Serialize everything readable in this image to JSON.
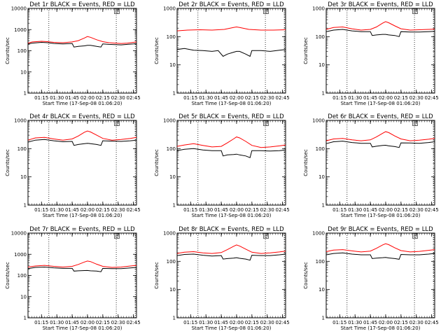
{
  "chart_data": [
    {
      "type": "line",
      "title": "Det 1r BLACK = Events, RED = LLD",
      "xlabel": "Start Time (17-Sep-08 01:06:20)",
      "ylabel": "Counts/sec",
      "yscale": "log",
      "ylim": [
        1,
        10000
      ],
      "xlim": [
        1.03,
        2.8
      ],
      "grid": false,
      "marker_label": "E",
      "x_tick_labels": [
        "01:15",
        "01:30",
        "01:45",
        "02:00",
        "02:15",
        "02:30",
        "02:45"
      ],
      "y_tick_labels": [
        "1",
        "10",
        "100",
        "1000",
        "10000"
      ],
      "vlines": [
        1.37,
        2.47,
        2.78
      ],
      "series": [
        {
          "color": "#ff0000",
          "x": [
            1.03,
            1.1,
            1.25,
            1.35,
            1.45,
            1.6,
            1.75,
            1.85,
            1.95,
            2.0,
            2.05,
            2.15,
            2.25,
            2.35,
            2.45,
            2.55,
            2.65,
            2.75,
            2.8
          ],
          "y": [
            230,
            260,
            280,
            270,
            250,
            240,
            260,
            300,
            400,
            470,
            430,
            330,
            270,
            240,
            230,
            220,
            230,
            250,
            260
          ]
        },
        {
          "color": "#000000",
          "x": [
            1.03,
            1.1,
            1.25,
            1.35,
            1.45,
            1.6,
            1.75,
            1.78,
            1.85,
            1.95,
            2.0,
            2.05,
            2.15,
            2.22,
            2.25,
            2.35,
            2.45,
            2.55,
            2.65,
            2.75,
            2.8
          ],
          "y": [
            210,
            230,
            250,
            240,
            220,
            210,
            220,
            150,
            160,
            170,
            180,
            180,
            160,
            150,
            210,
            200,
            195,
            190,
            200,
            210,
            220
          ]
        }
      ]
    },
    {
      "type": "line",
      "title": "Det 2r BLACK = Events, RED = LLD",
      "xlabel": "Start Time (17-Sep-08 01:06:20)",
      "ylabel": "Counts/sec",
      "yscale": "log",
      "ylim": [
        1,
        1000
      ],
      "xlim": [
        1.03,
        2.8
      ],
      "grid": false,
      "marker_label": "E",
      "x_tick_labels": [
        "01:15",
        "01:30",
        "01:45",
        "02:00",
        "02:15",
        "02:30",
        "02:45"
      ],
      "y_tick_labels": [
        "1",
        "10",
        "100",
        "1000"
      ],
      "vlines": [
        1.37,
        2.47,
        2.78
      ],
      "series": [
        {
          "color": "#ff0000",
          "x": [
            1.03,
            1.2,
            1.4,
            1.6,
            1.8,
            1.95,
            2.0,
            2.05,
            2.2,
            2.4,
            2.6,
            2.8
          ],
          "y": [
            160,
            170,
            175,
            170,
            180,
            210,
            220,
            210,
            180,
            170,
            170,
            175
          ]
        },
        {
          "color": "#000000",
          "x": [
            1.03,
            1.15,
            1.3,
            1.45,
            1.6,
            1.7,
            1.78,
            1.85,
            1.95,
            2.0,
            2.05,
            2.15,
            2.22,
            2.25,
            2.4,
            2.55,
            2.7,
            2.8
          ],
          "y": [
            35,
            38,
            33,
            32,
            30,
            32,
            20,
            24,
            28,
            30,
            30,
            24,
            20,
            32,
            32,
            30,
            33,
            35
          ]
        }
      ]
    },
    {
      "type": "line",
      "title": "Det 3r BLACK = Events, RED = LLD",
      "xlabel": "Start Time (17-Sep-08 01:06:20)",
      "ylabel": "Counts/sec",
      "yscale": "log",
      "ylim": [
        1,
        1000
      ],
      "xlim": [
        1.03,
        2.8
      ],
      "grid": false,
      "marker_label": "E",
      "x_tick_labels": [
        "01:15",
        "01:30",
        "01:45",
        "02:00",
        "02:15",
        "02:30",
        "02:45"
      ],
      "y_tick_labels": [
        "1",
        "10",
        "100",
        "1000"
      ],
      "vlines": [
        1.37,
        2.47,
        2.78
      ],
      "series": [
        {
          "color": "#ff0000",
          "x": [
            1.03,
            1.15,
            1.3,
            1.45,
            1.6,
            1.75,
            1.85,
            1.95,
            2.0,
            2.05,
            2.15,
            2.25,
            2.4,
            2.55,
            2.7,
            2.8
          ],
          "y": [
            180,
            210,
            220,
            190,
            170,
            180,
            220,
            300,
            340,
            310,
            240,
            190,
            170,
            175,
            180,
            185
          ]
        },
        {
          "color": "#000000",
          "x": [
            1.03,
            1.15,
            1.3,
            1.45,
            1.6,
            1.75,
            1.78,
            1.85,
            1.95,
            2.0,
            2.05,
            2.15,
            2.22,
            2.25,
            2.4,
            2.55,
            2.7,
            2.8
          ],
          "y": [
            150,
            170,
            180,
            160,
            150,
            150,
            110,
            115,
            120,
            120,
            115,
            110,
            100,
            150,
            145,
            145,
            150,
            155
          ]
        }
      ]
    },
    {
      "type": "line",
      "title": "Det 4r BLACK = Events, RED = LLD",
      "xlabel": "Start Time (17-Sep-08 01:06:20)",
      "ylabel": "Counts/sec",
      "yscale": "log",
      "ylim": [
        1,
        1000
      ],
      "xlim": [
        1.03,
        2.8
      ],
      "grid": false,
      "marker_label": "E",
      "x_tick_labels": [
        "01:15",
        "01:30",
        "01:45",
        "02:00",
        "02:15",
        "02:30",
        "02:45"
      ],
      "y_tick_labels": [
        "1",
        "10",
        "100",
        "1000"
      ],
      "vlines": [
        1.37,
        2.47,
        2.78
      ],
      "series": [
        {
          "color": "#ff0000",
          "x": [
            1.03,
            1.15,
            1.3,
            1.45,
            1.6,
            1.75,
            1.85,
            1.95,
            2.0,
            2.05,
            2.15,
            2.25,
            2.4,
            2.55,
            2.7,
            2.8
          ],
          "y": [
            200,
            240,
            250,
            220,
            200,
            220,
            280,
            380,
            420,
            390,
            300,
            230,
            200,
            210,
            230,
            250
          ]
        },
        {
          "color": "#000000",
          "x": [
            1.03,
            1.15,
            1.3,
            1.45,
            1.6,
            1.75,
            1.78,
            1.85,
            1.95,
            2.0,
            2.05,
            2.15,
            2.22,
            2.25,
            2.4,
            2.55,
            2.7,
            2.8
          ],
          "y": [
            170,
            200,
            210,
            190,
            175,
            180,
            130,
            140,
            150,
            155,
            150,
            140,
            130,
            190,
            185,
            180,
            190,
            200
          ]
        }
      ]
    },
    {
      "type": "line",
      "title": "Det 5r BLACK = Events, RED = LLD",
      "xlabel": "Start Time (17-Sep-08 01:06:20)",
      "ylabel": "Counts/sec",
      "yscale": "log",
      "ylim": [
        1,
        1000
      ],
      "xlim": [
        1.03,
        2.8
      ],
      "grid": false,
      "marker_label": "E",
      "x_tick_labels": [
        "01:15",
        "01:30",
        "01:45",
        "02:00",
        "02:15",
        "02:30",
        "02:45"
      ],
      "y_tick_labels": [
        "1",
        "10",
        "100",
        "1000"
      ],
      "vlines": [
        1.37,
        2.47,
        2.78
      ],
      "series": [
        {
          "color": "#ff0000",
          "x": [
            1.03,
            1.15,
            1.3,
            1.45,
            1.6,
            1.75,
            1.85,
            1.95,
            2.0,
            2.05,
            2.15,
            2.25,
            2.4,
            2.55,
            2.7,
            2.8
          ],
          "y": [
            120,
            135,
            150,
            130,
            115,
            120,
            160,
            220,
            260,
            240,
            180,
            130,
            110,
            115,
            125,
            135
          ]
        },
        {
          "color": "#000000",
          "x": [
            1.03,
            1.15,
            1.3,
            1.45,
            1.6,
            1.75,
            1.78,
            1.85,
            1.95,
            2.0,
            2.05,
            2.15,
            2.22,
            2.25,
            2.4,
            2.55,
            2.7,
            2.8
          ],
          "y": [
            85,
            95,
            100,
            90,
            85,
            85,
            55,
            60,
            62,
            64,
            60,
            55,
            48,
            85,
            85,
            82,
            85,
            90
          ]
        }
      ]
    },
    {
      "type": "line",
      "title": "Det 6r BLACK = Events, RED = LLD",
      "xlabel": "Start Time (17-Sep-08 01:06:20)",
      "ylabel": "Counts/sec",
      "yscale": "log",
      "ylim": [
        1,
        1000
      ],
      "xlim": [
        1.03,
        2.8
      ],
      "grid": false,
      "marker_label": "E",
      "x_tick_labels": [
        "01:15",
        "01:30",
        "01:45",
        "02:00",
        "02:15",
        "02:30",
        "02:45"
      ],
      "y_tick_labels": [
        "1",
        "10",
        "100",
        "1000"
      ],
      "vlines": [
        1.37,
        2.47,
        2.78
      ],
      "series": [
        {
          "color": "#ff0000",
          "x": [
            1.03,
            1.15,
            1.3,
            1.45,
            1.6,
            1.75,
            1.85,
            1.95,
            2.0,
            2.05,
            2.15,
            2.25,
            2.4,
            2.55,
            2.7,
            2.8
          ],
          "y": [
            190,
            220,
            230,
            205,
            190,
            205,
            260,
            350,
            400,
            370,
            280,
            220,
            190,
            200,
            215,
            230
          ]
        },
        {
          "color": "#000000",
          "x": [
            1.03,
            1.15,
            1.3,
            1.45,
            1.6,
            1.75,
            1.78,
            1.85,
            1.95,
            2.0,
            2.05,
            2.15,
            2.22,
            2.25,
            2.4,
            2.55,
            2.7,
            2.8
          ],
          "y": [
            150,
            175,
            185,
            165,
            155,
            155,
            115,
            122,
            130,
            132,
            125,
            118,
            110,
            160,
            158,
            155,
            165,
            175
          ]
        }
      ]
    },
    {
      "type": "line",
      "title": "Det 7r BLACK = Events, RED = LLD",
      "xlabel": "Start Time (17-Sep-08 01:06:20)",
      "ylabel": "Counts/sec",
      "yscale": "log",
      "ylim": [
        1,
        10000
      ],
      "xlim": [
        1.03,
        2.8
      ],
      "grid": false,
      "marker_label": "E",
      "x_tick_labels": [
        "01:15",
        "01:30",
        "01:45",
        "02:00",
        "02:15",
        "02:30",
        "02:45"
      ],
      "y_tick_labels": [
        "1",
        "10",
        "100",
        "1000",
        "10000"
      ],
      "vlines": [
        1.37,
        2.47,
        2.78
      ],
      "series": [
        {
          "color": "#ff0000",
          "x": [
            1.03,
            1.15,
            1.3,
            1.45,
            1.6,
            1.75,
            1.85,
            1.95,
            2.0,
            2.05,
            2.15,
            2.25,
            2.4,
            2.55,
            2.7,
            2.8
          ],
          "y": [
            250,
            280,
            300,
            270,
            250,
            270,
            330,
            430,
            480,
            450,
            340,
            270,
            240,
            250,
            280,
            300
          ]
        },
        {
          "color": "#000000",
          "x": [
            1.03,
            1.15,
            1.3,
            1.45,
            1.6,
            1.75,
            1.78,
            1.85,
            1.95,
            2.0,
            2.05,
            2.15,
            2.22,
            2.25,
            2.4,
            2.55,
            2.7,
            2.8
          ],
          "y": [
            210,
            240,
            250,
            230,
            215,
            215,
            160,
            165,
            170,
            172,
            165,
            160,
            150,
            215,
            210,
            210,
            225,
            240
          ]
        }
      ]
    },
    {
      "type": "line",
      "title": "Det 8r BLACK = Events, RED = LLD",
      "xlabel": "Start Time (17-Sep-08 01:06:20)",
      "ylabel": "Counts/sec",
      "yscale": "log",
      "ylim": [
        1,
        1000
      ],
      "xlim": [
        1.03,
        2.8
      ],
      "grid": false,
      "marker_label": "E",
      "x_tick_labels": [
        "01:15",
        "01:30",
        "01:45",
        "02:00",
        "02:15",
        "02:30",
        "02:45"
      ],
      "y_tick_labels": [
        "1",
        "10",
        "100",
        "1000"
      ],
      "vlines": [
        1.37,
        2.47,
        2.78
      ],
      "series": [
        {
          "color": "#ff0000",
          "x": [
            1.03,
            1.15,
            1.3,
            1.45,
            1.6,
            1.75,
            1.85,
            1.95,
            2.0,
            2.05,
            2.15,
            2.25,
            2.4,
            2.55,
            2.7,
            2.8
          ],
          "y": [
            190,
            210,
            220,
            200,
            190,
            205,
            260,
            340,
            380,
            350,
            270,
            210,
            190,
            200,
            215,
            230
          ]
        },
        {
          "color": "#000000",
          "x": [
            1.03,
            1.15,
            1.3,
            1.45,
            1.6,
            1.75,
            1.78,
            1.85,
            1.95,
            2.0,
            2.05,
            2.15,
            2.22,
            2.25,
            2.4,
            2.55,
            2.7,
            2.8
          ],
          "y": [
            160,
            175,
            180,
            165,
            155,
            160,
            120,
            125,
            130,
            135,
            128,
            120,
            110,
            165,
            160,
            160,
            170,
            180
          ]
        }
      ]
    },
    {
      "type": "line",
      "title": "Det 9r BLACK = Events, RED = LLD",
      "xlabel": "Start Time (17-Sep-08 01:06:20)",
      "ylabel": "Counts/sec",
      "yscale": "log",
      "ylim": [
        1,
        1000
      ],
      "xlim": [
        1.03,
        2.8
      ],
      "grid": false,
      "marker_label": "E",
      "x_tick_labels": [
        "01:15",
        "01:30",
        "01:45",
        "02:00",
        "02:15",
        "02:30",
        "02:45"
      ],
      "y_tick_labels": [
        "1",
        "10",
        "100",
        "1000"
      ],
      "vlines": [
        1.37,
        2.47,
        2.78
      ],
      "series": [
        {
          "color": "#ff0000",
          "x": [
            1.03,
            1.15,
            1.3,
            1.45,
            1.6,
            1.75,
            1.85,
            1.95,
            2.0,
            2.05,
            2.15,
            2.25,
            2.4,
            2.55,
            2.7,
            2.8
          ],
          "y": [
            220,
            250,
            260,
            235,
            215,
            230,
            290,
            380,
            420,
            390,
            300,
            240,
            215,
            225,
            245,
            260
          ]
        },
        {
          "color": "#000000",
          "x": [
            1.03,
            1.15,
            1.3,
            1.45,
            1.6,
            1.75,
            1.78,
            1.85,
            1.95,
            2.0,
            2.05,
            2.15,
            2.22,
            2.25,
            2.4,
            2.55,
            2.7,
            2.8
          ],
          "y": [
            170,
            190,
            200,
            180,
            170,
            170,
            125,
            130,
            135,
            138,
            132,
            125,
            118,
            175,
            170,
            170,
            180,
            190
          ]
        }
      ]
    }
  ]
}
